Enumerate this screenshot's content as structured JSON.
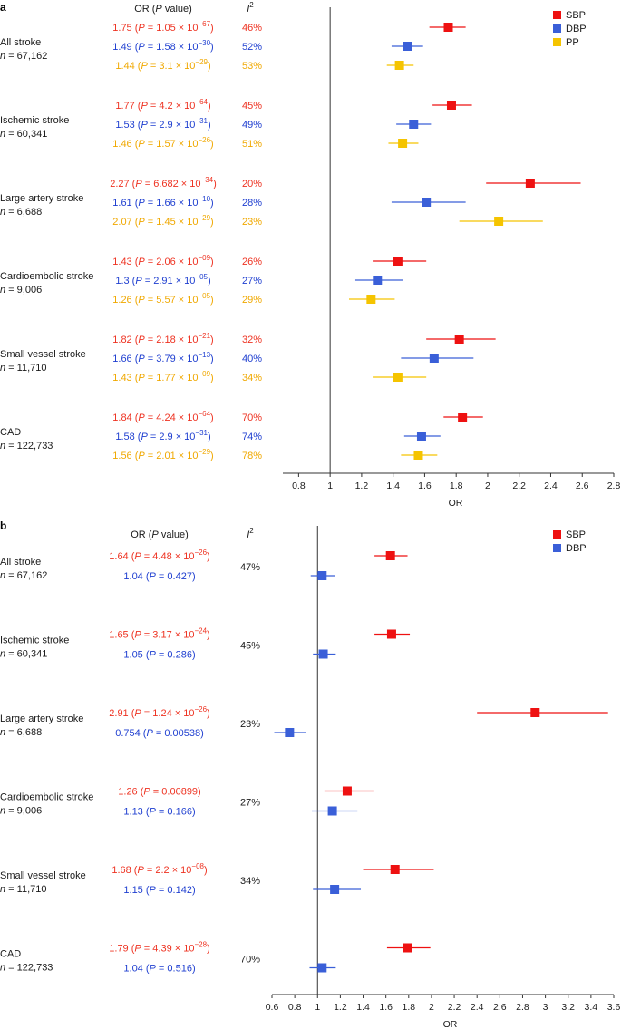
{
  "colors": {
    "SBP": "#ee1111",
    "DBP": "#3a5fd8",
    "PP": "#f5c400",
    "SBP_text": "#ee3322",
    "DBP_text": "#1f3fd0",
    "PP_text": "#f0a800"
  },
  "chart_data": [
    {
      "type": "forest",
      "panel_label": "a",
      "header": {
        "or_label": "OR (",
        "or_p": "P",
        "or_suffix": " value)",
        "i2": "I",
        "i2_sup": "2"
      },
      "xlabel": "OR",
      "xlim": [
        0.7,
        2.8
      ],
      "ticks": [
        "0.8",
        "1",
        "1.2",
        "1.4",
        "1.6",
        "1.8",
        "2",
        "2.2",
        "2.4",
        "2.6",
        "2.8"
      ],
      "reference": 1,
      "legend": [
        "SBP",
        "DBP",
        "PP"
      ],
      "groups": [
        {
          "name": "All stroke",
          "n": "67,162",
          "rows": [
            {
              "series": "SBP",
              "or": 1.75,
              "lo": 1.63,
              "hi": 1.86,
              "or_text": "1.75",
              "p_mant": "1.05",
              "p_exp": "−67",
              "i2": "46%"
            },
            {
              "series": "DBP",
              "or": 1.49,
              "lo": 1.39,
              "hi": 1.59,
              "or_text": "1.49",
              "p_mant": "1.58",
              "p_exp": "−30",
              "i2": "52%"
            },
            {
              "series": "PP",
              "or": 1.44,
              "lo": 1.36,
              "hi": 1.53,
              "or_text": "1.44",
              "p_mant": "3.1",
              "p_exp": "−29",
              "i2": "53%"
            }
          ]
        },
        {
          "name": "Ischemic stroke",
          "n": "60,341",
          "rows": [
            {
              "series": "SBP",
              "or": 1.77,
              "lo": 1.65,
              "hi": 1.9,
              "or_text": "1.77",
              "p_mant": "4.2",
              "p_exp": "−64",
              "i2": "45%"
            },
            {
              "series": "DBP",
              "or": 1.53,
              "lo": 1.42,
              "hi": 1.64,
              "or_text": "1.53",
              "p_mant": "2.9",
              "p_exp": "−31",
              "i2": "49%"
            },
            {
              "series": "PP",
              "or": 1.46,
              "lo": 1.37,
              "hi": 1.56,
              "or_text": "1.46",
              "p_mant": "1.57",
              "p_exp": "−26",
              "i2": "51%"
            }
          ]
        },
        {
          "name": "Large artery stroke",
          "n": "6,688",
          "rows": [
            {
              "series": "SBP",
              "or": 2.27,
              "lo": 1.99,
              "hi": 2.59,
              "or_text": "2.27",
              "p_mant": "6.682",
              "p_exp": "−34",
              "i2": "20%"
            },
            {
              "series": "DBP",
              "or": 1.61,
              "lo": 1.39,
              "hi": 1.86,
              "or_text": "1.61",
              "p_mant": "1.66",
              "p_exp": "−10",
              "i2": "28%"
            },
            {
              "series": "PP",
              "or": 2.07,
              "lo": 1.82,
              "hi": 2.35,
              "or_text": "2.07",
              "p_mant": "1.45",
              "p_exp": "−29",
              "i2": "23%"
            }
          ]
        },
        {
          "name": "Cardioembolic stroke",
          "n": "9,006",
          "rows": [
            {
              "series": "SBP",
              "or": 1.43,
              "lo": 1.27,
              "hi": 1.61,
              "or_text": "1.43",
              "p_mant": "2.06",
              "p_exp": "−09",
              "i2": "26%"
            },
            {
              "series": "DBP",
              "or": 1.3,
              "lo": 1.16,
              "hi": 1.46,
              "or_text": "1.3",
              "p_mant": "2.91",
              "p_exp": "−05",
              "i2": "27%"
            },
            {
              "series": "PP",
              "or": 1.26,
              "lo": 1.12,
              "hi": 1.41,
              "or_text": "1.26",
              "p_mant": "5.57",
              "p_exp": "−05",
              "i2": "29%"
            }
          ]
        },
        {
          "name": "Small vessel stroke",
          "n": "11,710",
          "rows": [
            {
              "series": "SBP",
              "or": 1.82,
              "lo": 1.61,
              "hi": 2.05,
              "or_text": "1.82",
              "p_mant": "2.18",
              "p_exp": "−21",
              "i2": "32%"
            },
            {
              "series": "DBP",
              "or": 1.66,
              "lo": 1.45,
              "hi": 1.91,
              "or_text": "1.66",
              "p_mant": "3.79",
              "p_exp": "−13",
              "i2": "40%"
            },
            {
              "series": "PP",
              "or": 1.43,
              "lo": 1.27,
              "hi": 1.61,
              "or_text": "1.43",
              "p_mant": "1.77",
              "p_exp": "−09",
              "i2": "34%"
            }
          ]
        },
        {
          "name": "CAD",
          "n": "122,733",
          "rows": [
            {
              "series": "SBP",
              "or": 1.84,
              "lo": 1.72,
              "hi": 1.97,
              "or_text": "1.84",
              "p_mant": "4.24",
              "p_exp": "−64",
              "i2": "70%"
            },
            {
              "series": "DBP",
              "or": 1.58,
              "lo": 1.47,
              "hi": 1.7,
              "or_text": "1.58",
              "p_mant": "2.9",
              "p_exp": "−31",
              "i2": "74%"
            },
            {
              "series": "PP",
              "or": 1.56,
              "lo": 1.45,
              "hi": 1.68,
              "or_text": "1.56",
              "p_mant": "2.01",
              "p_exp": "−29",
              "i2": "78%"
            }
          ]
        }
      ]
    },
    {
      "type": "forest",
      "panel_label": "b",
      "header": {
        "or_label": "OR (",
        "or_p": "P",
        "or_suffix": " value)",
        "i2": "I",
        "i2_sup": "2"
      },
      "xlabel": "OR",
      "xlim": [
        0.6,
        3.6
      ],
      "ticks": [
        "0.6",
        "0.8",
        "1",
        "1.2",
        "1.4",
        "1.6",
        "1.8",
        "2",
        "2.2",
        "2.4",
        "2.6",
        "2.8",
        "3",
        "3.2",
        "3.4",
        "3.6"
      ],
      "reference": 1,
      "legend": [
        "SBP",
        "DBP"
      ],
      "groups": [
        {
          "name": "All stroke",
          "n": "67,162",
          "i2": "47%",
          "rows": [
            {
              "series": "SBP",
              "or": 1.64,
              "lo": 1.5,
              "hi": 1.79,
              "or_text": "1.64",
              "p_mant": "4.48",
              "p_exp": "−26"
            },
            {
              "series": "DBP",
              "or": 1.04,
              "lo": 0.94,
              "hi": 1.15,
              "or_text": "1.04",
              "p_plain": "0.427"
            }
          ]
        },
        {
          "name": "Ischemic stroke",
          "n": "60,341",
          "i2": "45%",
          "rows": [
            {
              "series": "SBP",
              "or": 1.65,
              "lo": 1.5,
              "hi": 1.81,
              "or_text": "1.65",
              "p_mant": "3.17",
              "p_exp": "−24"
            },
            {
              "series": "DBP",
              "or": 1.05,
              "lo": 0.96,
              "hi": 1.16,
              "or_text": "1.05",
              "p_plain": "0.286"
            }
          ]
        },
        {
          "name": "Large artery stroke",
          "n": "6,688",
          "i2": "23%",
          "rows": [
            {
              "series": "SBP",
              "or": 2.91,
              "lo": 2.4,
              "hi": 3.55,
              "or_text": "2.91",
              "p_mant": "1.24",
              "p_exp": "−26"
            },
            {
              "series": "DBP",
              "or": 0.754,
              "lo": 0.62,
              "hi": 0.9,
              "or_text": "0.754",
              "p_plain": "0.00538"
            }
          ]
        },
        {
          "name": "Cardioembolic stroke",
          "n": "9,006",
          "i2": "27%",
          "rows": [
            {
              "series": "SBP",
              "or": 1.26,
              "lo": 1.06,
              "hi": 1.49,
              "or_text": "1.26",
              "p_plain": "0.00899"
            },
            {
              "series": "DBP",
              "or": 1.13,
              "lo": 0.95,
              "hi": 1.35,
              "or_text": "1.13",
              "p_plain": "0.166"
            }
          ]
        },
        {
          "name": "Small vessel stroke",
          "n": "11,710",
          "i2": "34%",
          "rows": [
            {
              "series": "SBP",
              "or": 1.68,
              "lo": 1.4,
              "hi": 2.02,
              "or_text": "1.68",
              "p_mant": "2.2",
              "p_exp": "−08"
            },
            {
              "series": "DBP",
              "or": 1.15,
              "lo": 0.96,
              "hi": 1.38,
              "or_text": "1.15",
              "p_plain": "0.142"
            }
          ]
        },
        {
          "name": "CAD",
          "n": "122,733",
          "i2": "70%",
          "rows": [
            {
              "series": "SBP",
              "or": 1.79,
              "lo": 1.61,
              "hi": 1.99,
              "or_text": "1.79",
              "p_mant": "4.39",
              "p_exp": "−28"
            },
            {
              "series": "DBP",
              "or": 1.04,
              "lo": 0.93,
              "hi": 1.16,
              "or_text": "1.04",
              "p_plain": "0.516"
            }
          ]
        }
      ]
    }
  ]
}
